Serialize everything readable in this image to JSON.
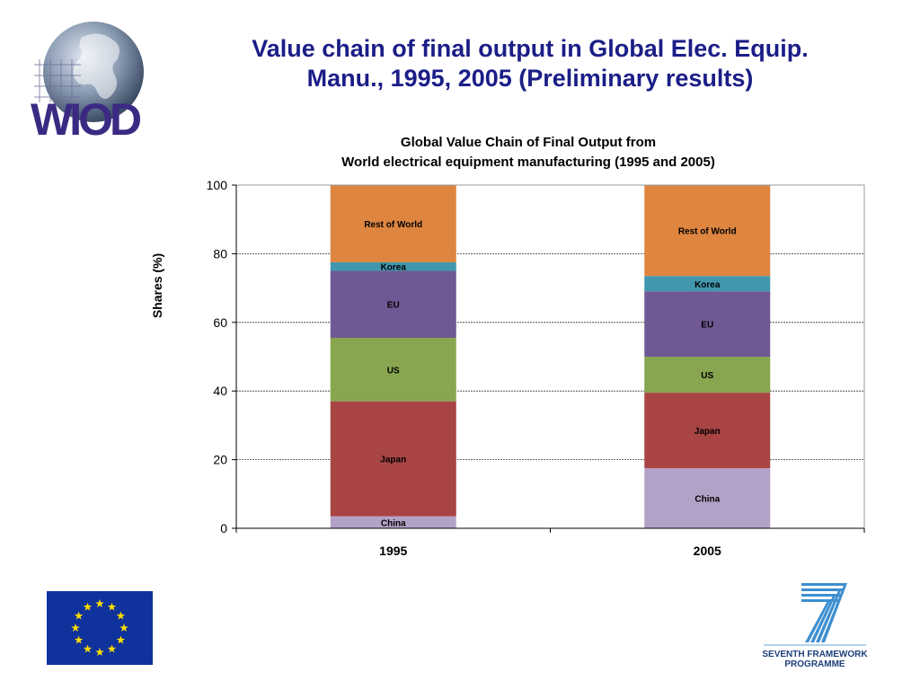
{
  "slide": {
    "title_line1": "Value chain of final output in Global Elec. Equip.",
    "title_line2": "Manu., 1995, 2005 (Preliminary results)"
  },
  "logos": {
    "wiod_text": "WIOD",
    "fp7_line1": "SEVENTH FRAMEWORK",
    "fp7_line2": "PROGRAMME"
  },
  "colors": {
    "title": "#1b1e87",
    "China": "#b3a2c7",
    "Japan": "#a84444",
    "US": "#88a54f",
    "EU": "#705894",
    "Korea": "#4197ae",
    "Rest of World": "#de8540"
  },
  "chart_data": {
    "type": "bar",
    "stacked": true,
    "title_line1": "Global Value Chain of Final Output from",
    "title_line2": "World electrical equipment manufacturing (1995 and 2005)",
    "xlabel": "",
    "ylabel": "Shares (%)",
    "ylim": [
      0,
      100
    ],
    "yticks": [
      0,
      20,
      40,
      60,
      80,
      100
    ],
    "grid": true,
    "categories": [
      "1995",
      "2005"
    ],
    "series": [
      {
        "name": "China",
        "values": [
          3.5,
          17.5
        ]
      },
      {
        "name": "Japan",
        "values": [
          33.5,
          22
        ]
      },
      {
        "name": "US",
        "values": [
          18.5,
          10.5
        ]
      },
      {
        "name": "EU",
        "values": [
          19.5,
          19
        ]
      },
      {
        "name": "Korea",
        "values": [
          2.5,
          4.5
        ]
      },
      {
        "name": "Rest of World",
        "values": [
          22.5,
          26.5
        ]
      }
    ]
  }
}
